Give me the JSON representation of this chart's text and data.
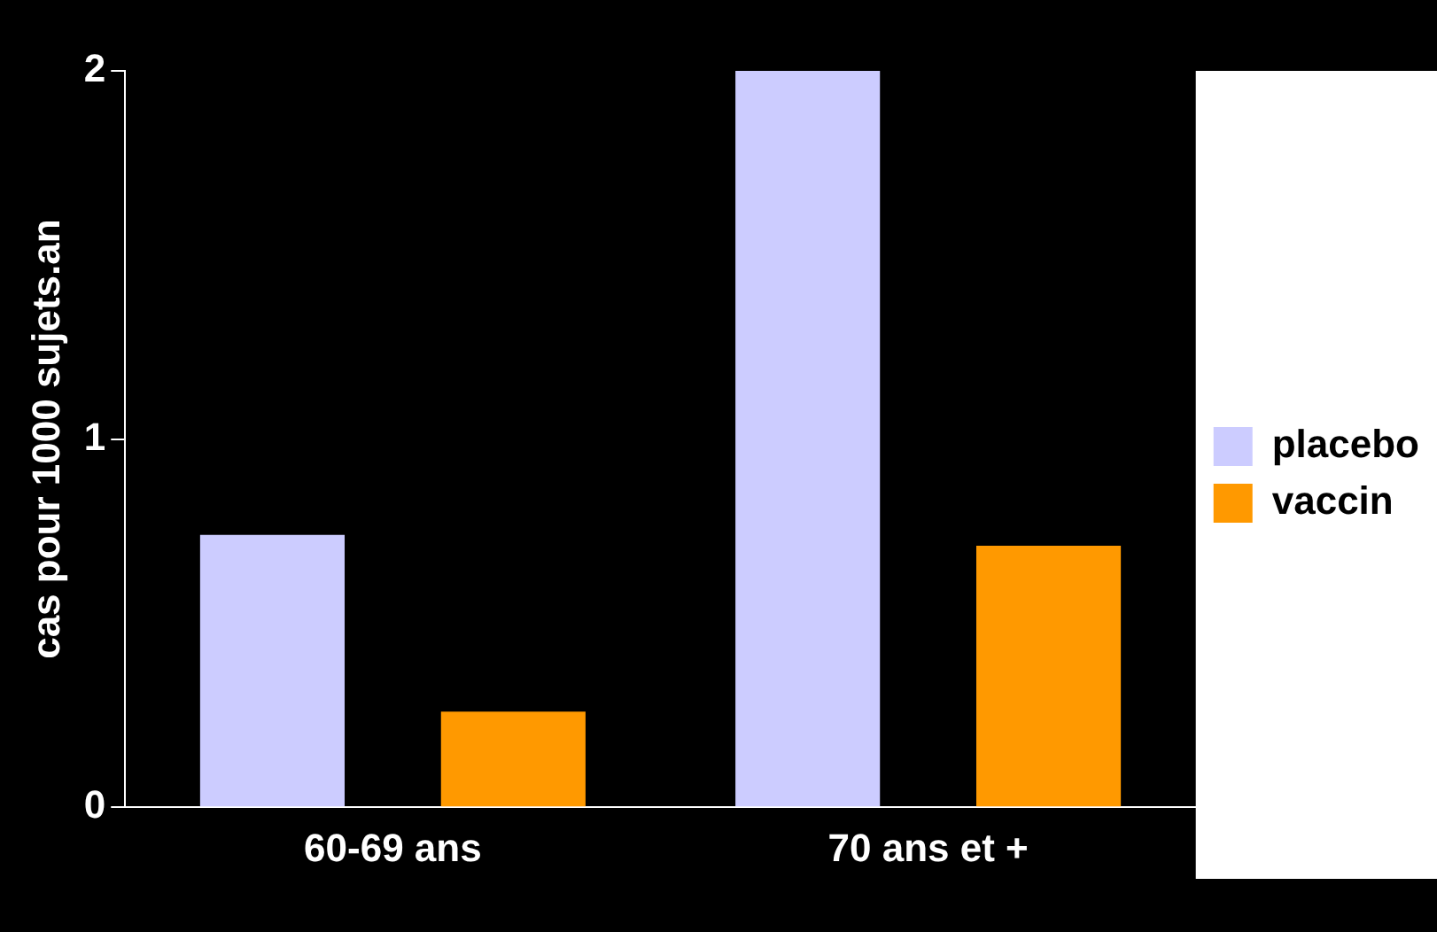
{
  "chart_data": {
    "type": "bar",
    "ylabel": "cas pour 1000 sujets.an",
    "categories": [
      "60-69 ans",
      "70 ans et +"
    ],
    "series": [
      {
        "name": "placebo",
        "color": "#ccccff",
        "values": [
          0.74,
          2.0
        ]
      },
      {
        "name": "vaccin",
        "color": "#ff9900",
        "values": [
          0.26,
          0.71
        ]
      }
    ],
    "ylim": [
      0,
      2
    ],
    "yticks": [
      0,
      1,
      2
    ],
    "grid": false,
    "legend": "right"
  }
}
